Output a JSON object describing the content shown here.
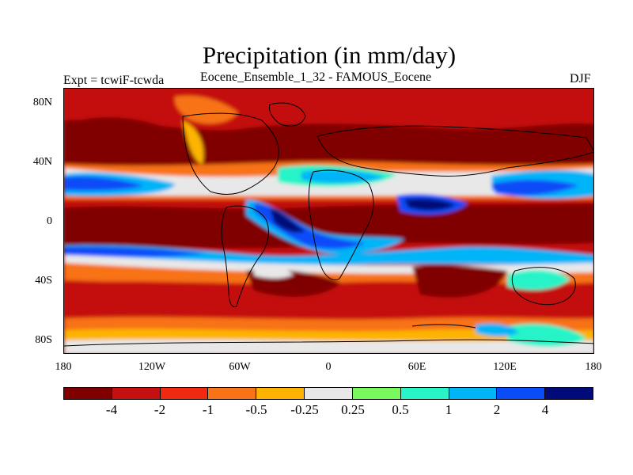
{
  "title": "Precipitation (in mm/day)",
  "subtitle": "Eocene_Ensemble_1_32 - FAMOUS_Eocene",
  "left_label": "Expt = tcwiF-tcwda",
  "right_label": "DJF",
  "map": {
    "projection": "cylindrical equidistant",
    "lon_range": [
      -180,
      180
    ],
    "lat_range": [
      -90,
      90
    ],
    "lat_ticks": [
      {
        "value": 80,
        "label": "80N"
      },
      {
        "value": 40,
        "label": "40N"
      },
      {
        "value": 0,
        "label": "0"
      },
      {
        "value": -40,
        "label": "40S"
      },
      {
        "value": -80,
        "label": "80S"
      }
    ],
    "lon_ticks": [
      {
        "value": -180,
        "label": "180"
      },
      {
        "value": -120,
        "label": "120W"
      },
      {
        "value": -60,
        "label": "60W"
      },
      {
        "value": 0,
        "label": "0"
      },
      {
        "value": 60,
        "label": "60E"
      },
      {
        "value": 120,
        "label": "120E"
      },
      {
        "value": 180,
        "label": "180"
      }
    ]
  },
  "colorbar": {
    "colors": [
      "#800000",
      "#c4100f",
      "#f02a10",
      "#f87218",
      "#fcb400",
      "#e8e8e8",
      "#78fa5e",
      "#28f4c8",
      "#00b4f8",
      "#0a4cf8",
      "#000a78"
    ],
    "labels": [
      "-4",
      "-2",
      "-1",
      "-0.5",
      "-0.25",
      "0.25",
      "0.5",
      "1",
      "2",
      "4"
    ]
  }
}
